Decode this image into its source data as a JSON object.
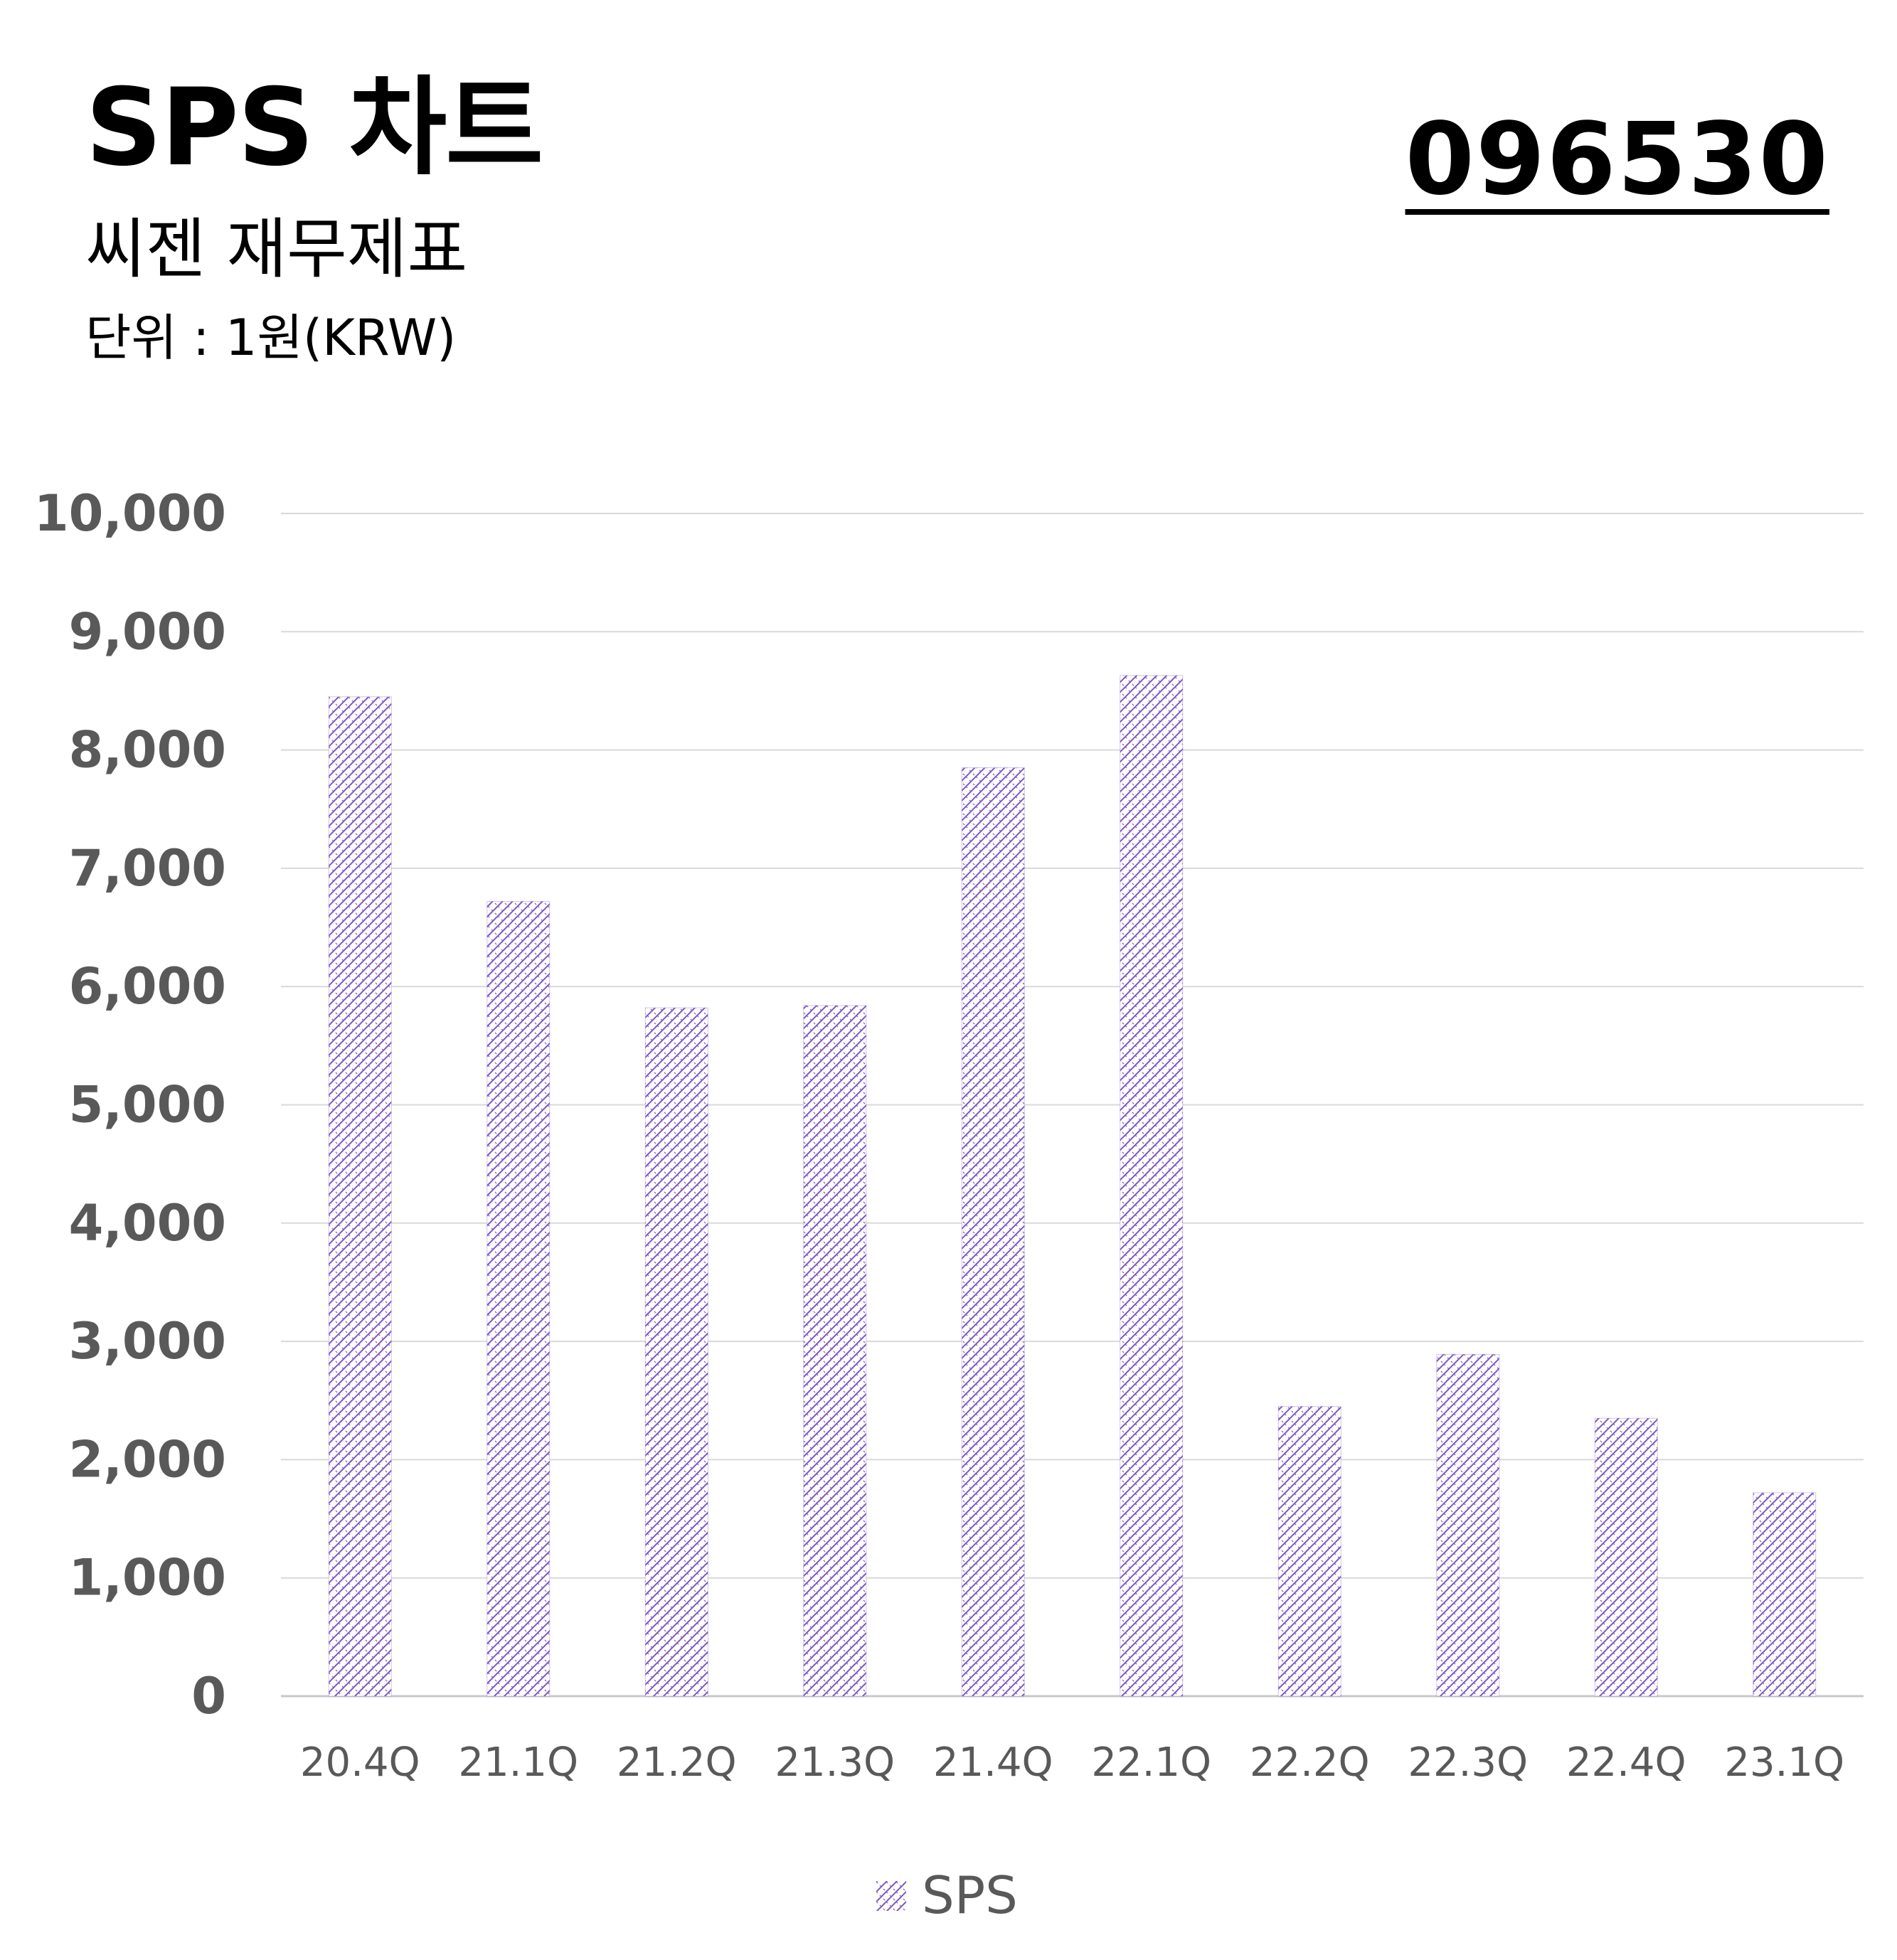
{
  "header": {
    "title": "SPS 차트",
    "subtitle": "씨젠 재무제표",
    "unit": "단위 : 1원(KRW)",
    "code": "096530"
  },
  "colors": {
    "bar_pattern": "#7e57c2",
    "grid": "#d9d9d9",
    "axis_text": "#595959"
  },
  "chart_data": {
    "type": "bar",
    "categories": [
      "20.4Q",
      "21.1Q",
      "21.2Q",
      "21.3Q",
      "21.4Q",
      "22.1Q",
      "22.2Q",
      "22.3Q",
      "22.4Q",
      "23.1Q"
    ],
    "series": [
      {
        "name": "SPS",
        "values": [
          8450,
          6720,
          5820,
          5840,
          7850,
          8630,
          2450,
          2890,
          2350,
          1720
        ]
      }
    ],
    "ylim": [
      0,
      10000
    ],
    "yticks": [
      0,
      1000,
      2000,
      3000,
      4000,
      5000,
      6000,
      7000,
      8000,
      9000,
      10000
    ],
    "ytick_labels": [
      "0",
      "1,000",
      "2,000",
      "3,000",
      "4,000",
      "5,000",
      "6,000",
      "7,000",
      "8,000",
      "9,000",
      "10,000"
    ],
    "grid": true,
    "legend": "bottom",
    "bar_fill": "crosshatch-pattern"
  }
}
